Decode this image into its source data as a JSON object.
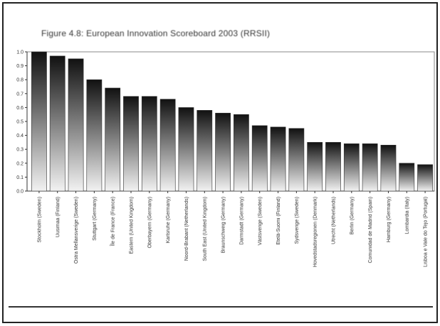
{
  "chart_data": {
    "type": "bar",
    "title": "Figure 4.8: European Innovation Scoreboard 2003 (RRSII)",
    "xlabel": "",
    "ylabel": "",
    "ylim": [
      0,
      1.0
    ],
    "yticks": [
      "0.0",
      "0.1",
      "0.2",
      "0.3",
      "0.4",
      "0.5",
      "0.6",
      "0.7",
      "0.8",
      "0.9",
      "1.0"
    ],
    "grid": false,
    "categories": [
      "Stockholm (Sweden)",
      "Uusimaa (Finland)",
      "Östra Mellansverige (Sweden)",
      "Stuttgart (Germany)",
      "Île de France (France)",
      "Eastern (United Kingdom)",
      "Oberbayern (Germany)",
      "Karlsruhe (Germany)",
      "Noord-Brabant (Netherlands)",
      "South East (United Kingdom)",
      "Braunschweig (Germany)",
      "Darmstadt (Germany)",
      "Västsverige (Sweden)",
      "Etelä-Suomi (Finland)",
      "Sydsverige (Sweden)",
      "Hovedstadsregionen (Denmark)",
      "Utrecht (Netherlands)",
      "Berlin (Germany)",
      "Comunidad de Madrid (Spain)",
      "Hamburg (Germany)",
      "Lombardia (Italy)",
      "Lisboa e Vale do Tejo (Portugal)"
    ],
    "values": [
      1.0,
      0.97,
      0.95,
      0.8,
      0.74,
      0.68,
      0.68,
      0.66,
      0.6,
      0.58,
      0.56,
      0.55,
      0.47,
      0.46,
      0.45,
      0.35,
      0.35,
      0.34,
      0.34,
      0.33,
      0.2,
      0.19
    ],
    "colors": {
      "bar_top": "#111111",
      "bar_bottom": "#f2f2f2",
      "axis": "#333333",
      "frame": "#222222"
    }
  }
}
